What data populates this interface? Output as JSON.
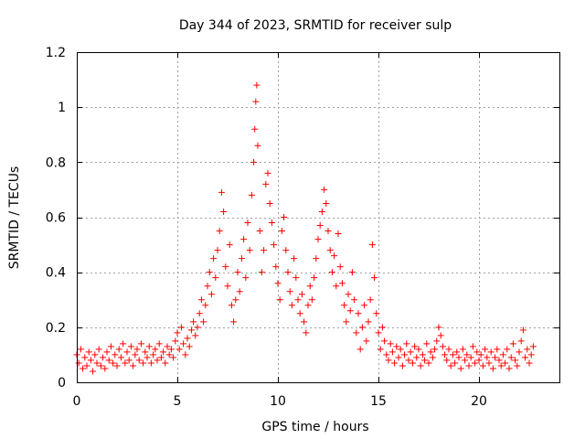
{
  "chart_data": {
    "type": "scatter",
    "title": "Day 344 of 2023, SRMTID for receiver sulp",
    "xlabel": "GPS time / hours",
    "ylabel": "SRMTID / TECUs",
    "xlim": [
      0,
      24
    ],
    "ylim": [
      0,
      1.2
    ],
    "xticks": [
      0,
      5,
      10,
      15,
      20
    ],
    "xtick_labels": [
      "0",
      "5",
      "10",
      "15",
      "20"
    ],
    "yticks": [
      0,
      0.2,
      0.4,
      0.6,
      0.8,
      1.0,
      1.2
    ],
    "ytick_labels": [
      "0",
      "0.2",
      "0.4",
      "0.6",
      "0.8",
      "1",
      "1.2"
    ],
    "grid": true,
    "marker": "+",
    "color": "#ff0000",
    "series": [
      {
        "name": "SRMTID",
        "points": [
          [
            0.0,
            0.1
          ],
          [
            0.1,
            0.07
          ],
          [
            0.2,
            0.12
          ],
          [
            0.3,
            0.05
          ],
          [
            0.4,
            0.09
          ],
          [
            0.5,
            0.06
          ],
          [
            0.6,
            0.11
          ],
          [
            0.7,
            0.08
          ],
          [
            0.8,
            0.04
          ],
          [
            0.9,
            0.1
          ],
          [
            1.0,
            0.07
          ],
          [
            1.1,
            0.12
          ],
          [
            1.2,
            0.06
          ],
          [
            1.3,
            0.09
          ],
          [
            1.4,
            0.05
          ],
          [
            1.5,
            0.11
          ],
          [
            1.6,
            0.08
          ],
          [
            1.7,
            0.13
          ],
          [
            1.8,
            0.07
          ],
          [
            1.9,
            0.1
          ],
          [
            2.0,
            0.06
          ],
          [
            2.1,
            0.12
          ],
          [
            2.2,
            0.09
          ],
          [
            2.3,
            0.14
          ],
          [
            2.4,
            0.07
          ],
          [
            2.5,
            0.11
          ],
          [
            2.6,
            0.08
          ],
          [
            2.7,
            0.13
          ],
          [
            2.8,
            0.06
          ],
          [
            2.9,
            0.1
          ],
          [
            3.0,
            0.12
          ],
          [
            3.1,
            0.08
          ],
          [
            3.2,
            0.14
          ],
          [
            3.3,
            0.07
          ],
          [
            3.4,
            0.11
          ],
          [
            3.5,
            0.09
          ],
          [
            3.6,
            0.13
          ],
          [
            3.7,
            0.07
          ],
          [
            3.8,
            0.1
          ],
          [
            3.9,
            0.12
          ],
          [
            4.0,
            0.08
          ],
          [
            4.1,
            0.14
          ],
          [
            4.2,
            0.09
          ],
          [
            4.3,
            0.11
          ],
          [
            4.4,
            0.07
          ],
          [
            4.5,
            0.13
          ],
          [
            4.6,
            0.1
          ],
          [
            4.7,
            0.12
          ],
          [
            4.8,
            0.09
          ],
          [
            4.9,
            0.15
          ],
          [
            5.0,
            0.18
          ],
          [
            5.1,
            0.12
          ],
          [
            5.2,
            0.2
          ],
          [
            5.3,
            0.14
          ],
          [
            5.4,
            0.1
          ],
          [
            5.5,
            0.16
          ],
          [
            5.6,
            0.13
          ],
          [
            5.7,
            0.19
          ],
          [
            5.8,
            0.22
          ],
          [
            5.9,
            0.17
          ],
          [
            6.0,
            0.2
          ],
          [
            6.1,
            0.25
          ],
          [
            6.2,
            0.3
          ],
          [
            6.3,
            0.22
          ],
          [
            6.4,
            0.28
          ],
          [
            6.5,
            0.35
          ],
          [
            6.6,
            0.4
          ],
          [
            6.7,
            0.32
          ],
          [
            6.8,
            0.45
          ],
          [
            6.9,
            0.38
          ],
          [
            7.0,
            0.48
          ],
          [
            7.1,
            0.55
          ],
          [
            7.2,
            0.69
          ],
          [
            7.3,
            0.62
          ],
          [
            7.4,
            0.42
          ],
          [
            7.5,
            0.35
          ],
          [
            7.6,
            0.5
          ],
          [
            7.7,
            0.28
          ],
          [
            7.8,
            0.22
          ],
          [
            7.9,
            0.3
          ],
          [
            8.0,
            0.4
          ],
          [
            8.1,
            0.33
          ],
          [
            8.2,
            0.45
          ],
          [
            8.3,
            0.52
          ],
          [
            8.4,
            0.38
          ],
          [
            8.5,
            0.58
          ],
          [
            8.6,
            0.48
          ],
          [
            8.7,
            0.68
          ],
          [
            8.8,
            0.8
          ],
          [
            8.85,
            0.92
          ],
          [
            8.9,
            1.02
          ],
          [
            8.95,
            1.08
          ],
          [
            9.0,
            0.86
          ],
          [
            9.1,
            0.55
          ],
          [
            9.2,
            0.4
          ],
          [
            9.3,
            0.48
          ],
          [
            9.4,
            0.72
          ],
          [
            9.5,
            0.76
          ],
          [
            9.6,
            0.65
          ],
          [
            9.7,
            0.58
          ],
          [
            9.8,
            0.5
          ],
          [
            9.9,
            0.42
          ],
          [
            10.0,
            0.36
          ],
          [
            10.1,
            0.3
          ],
          [
            10.2,
            0.55
          ],
          [
            10.3,
            0.6
          ],
          [
            10.4,
            0.48
          ],
          [
            10.5,
            0.4
          ],
          [
            10.6,
            0.33
          ],
          [
            10.7,
            0.28
          ],
          [
            10.8,
            0.45
          ],
          [
            10.9,
            0.38
          ],
          [
            11.0,
            0.3
          ],
          [
            11.1,
            0.25
          ],
          [
            11.2,
            0.32
          ],
          [
            11.3,
            0.22
          ],
          [
            11.4,
            0.18
          ],
          [
            11.5,
            0.28
          ],
          [
            11.6,
            0.35
          ],
          [
            11.7,
            0.3
          ],
          [
            11.8,
            0.38
          ],
          [
            11.9,
            0.45
          ],
          [
            12.0,
            0.52
          ],
          [
            12.1,
            0.57
          ],
          [
            12.2,
            0.62
          ],
          [
            12.3,
            0.7
          ],
          [
            12.4,
            0.65
          ],
          [
            12.5,
            0.55
          ],
          [
            12.6,
            0.48
          ],
          [
            12.7,
            0.4
          ],
          [
            12.8,
            0.46
          ],
          [
            12.9,
            0.35
          ],
          [
            13.0,
            0.54
          ],
          [
            13.1,
            0.42
          ],
          [
            13.2,
            0.36
          ],
          [
            13.3,
            0.28
          ],
          [
            13.4,
            0.22
          ],
          [
            13.5,
            0.32
          ],
          [
            13.6,
            0.26
          ],
          [
            13.7,
            0.4
          ],
          [
            13.8,
            0.3
          ],
          [
            13.9,
            0.18
          ],
          [
            14.0,
            0.25
          ],
          [
            14.1,
            0.12
          ],
          [
            14.2,
            0.2
          ],
          [
            14.3,
            0.28
          ],
          [
            14.4,
            0.15
          ],
          [
            14.5,
            0.22
          ],
          [
            14.6,
            0.3
          ],
          [
            14.7,
            0.5
          ],
          [
            14.8,
            0.38
          ],
          [
            14.9,
            0.25
          ],
          [
            15.0,
            0.18
          ],
          [
            15.1,
            0.12
          ],
          [
            15.2,
            0.2
          ],
          [
            15.3,
            0.15
          ],
          [
            15.4,
            0.1
          ],
          [
            15.5,
            0.08
          ],
          [
            15.6,
            0.14
          ],
          [
            15.7,
            0.11
          ],
          [
            15.8,
            0.07
          ],
          [
            15.9,
            0.13
          ],
          [
            16.0,
            0.09
          ],
          [
            16.1,
            0.12
          ],
          [
            16.2,
            0.06
          ],
          [
            16.3,
            0.1
          ],
          [
            16.4,
            0.14
          ],
          [
            16.5,
            0.08
          ],
          [
            16.6,
            0.11
          ],
          [
            16.7,
            0.07
          ],
          [
            16.8,
            0.13
          ],
          [
            16.9,
            0.09
          ],
          [
            17.0,
            0.12
          ],
          [
            17.1,
            0.06
          ],
          [
            17.2,
            0.1
          ],
          [
            17.3,
            0.08
          ],
          [
            17.4,
            0.14
          ],
          [
            17.5,
            0.07
          ],
          [
            17.6,
            0.11
          ],
          [
            17.7,
            0.09
          ],
          [
            17.8,
            0.12
          ],
          [
            17.9,
            0.15
          ],
          [
            18.0,
            0.2
          ],
          [
            18.1,
            0.17
          ],
          [
            18.2,
            0.13
          ],
          [
            18.3,
            0.1
          ],
          [
            18.4,
            0.08
          ],
          [
            18.5,
            0.12
          ],
          [
            18.6,
            0.06
          ],
          [
            18.7,
            0.1
          ],
          [
            18.8,
            0.07
          ],
          [
            18.9,
            0.11
          ],
          [
            19.0,
            0.09
          ],
          [
            19.1,
            0.05
          ],
          [
            19.2,
            0.12
          ],
          [
            19.3,
            0.08
          ],
          [
            19.4,
            0.1
          ],
          [
            19.5,
            0.06
          ],
          [
            19.6,
            0.09
          ],
          [
            19.7,
            0.13
          ],
          [
            19.8,
            0.07
          ],
          [
            19.9,
            0.11
          ],
          [
            20.0,
            0.08
          ],
          [
            20.1,
            0.1
          ],
          [
            20.2,
            0.06
          ],
          [
            20.3,
            0.12
          ],
          [
            20.4,
            0.09
          ],
          [
            20.5,
            0.07
          ],
          [
            20.6,
            0.11
          ],
          [
            20.7,
            0.05
          ],
          [
            20.8,
            0.09
          ],
          [
            20.9,
            0.12
          ],
          [
            21.0,
            0.08
          ],
          [
            21.1,
            0.06
          ],
          [
            21.2,
            0.1
          ],
          [
            21.3,
            0.07
          ],
          [
            21.4,
            0.12
          ],
          [
            21.5,
            0.05
          ],
          [
            21.6,
            0.09
          ],
          [
            21.7,
            0.14
          ],
          [
            21.8,
            0.08
          ],
          [
            21.9,
            0.06
          ],
          [
            22.0,
            0.11
          ],
          [
            22.1,
            0.15
          ],
          [
            22.2,
            0.19
          ],
          [
            22.3,
            0.09
          ],
          [
            22.4,
            0.12
          ],
          [
            22.5,
            0.07
          ],
          [
            22.6,
            0.1
          ],
          [
            22.7,
            0.13
          ]
        ]
      }
    ]
  }
}
